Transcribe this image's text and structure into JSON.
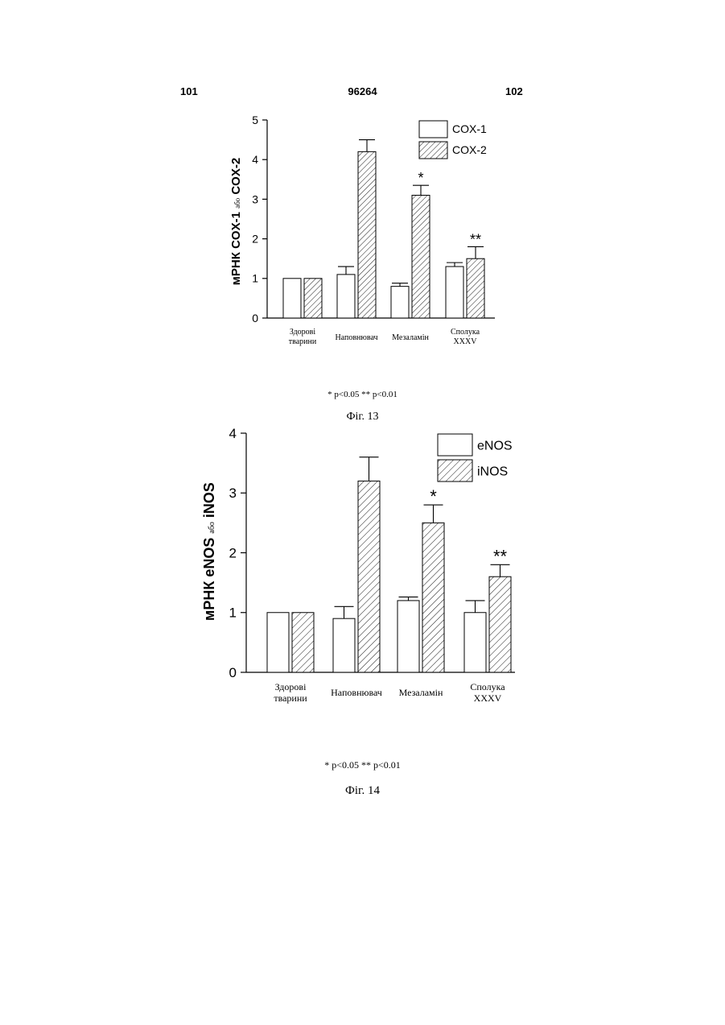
{
  "header": {
    "left": "101",
    "center": "96264",
    "right": "102"
  },
  "figures": [
    {
      "caption": "Фіг. 13",
      "footnote": "* p<0.05 ** p<0.01",
      "chart_data": {
        "type": "bar",
        "ylabel_main": "мРНК COX-1",
        "ylabel_conj": "або",
        "ylabel_tail": "COX-2",
        "ylim": [
          0,
          5
        ],
        "yticks": [
          0,
          1,
          2,
          3,
          4,
          5
        ],
        "categories": [
          [
            "Здорові",
            "тварини"
          ],
          [
            "Наповнювач"
          ],
          [
            "Мезаламін"
          ],
          [
            "Сполука",
            "XXXV"
          ]
        ],
        "series": [
          {
            "name": "COX-1",
            "pattern": "open",
            "values": [
              1.0,
              1.1,
              0.8,
              1.3
            ],
            "errors": [
              0,
              0.2,
              0.08,
              0.1
            ]
          },
          {
            "name": "COX-2",
            "pattern": "hatched",
            "values": [
              1.0,
              4.2,
              3.1,
              1.5
            ],
            "errors": [
              0,
              0.3,
              0.25,
              0.3
            ]
          }
        ],
        "significance": [
          "",
          "",
          "*",
          "**"
        ],
        "legend": "top-right",
        "grid": false
      }
    },
    {
      "caption": "Фіг. 14",
      "footnote": "* p<0.05 ** p<0.01",
      "chart_data": {
        "type": "bar",
        "ylabel_main": "мРНК eNOS",
        "ylabel_conj": "або",
        "ylabel_tail": "iNOS",
        "ylim": [
          0,
          4
        ],
        "yticks": [
          0,
          1,
          2,
          3,
          4
        ],
        "categories": [
          [
            "Здорові",
            "тварини"
          ],
          [
            "Наповнювач"
          ],
          [
            "Мезаламін"
          ],
          [
            "Сполука",
            "XXXV"
          ]
        ],
        "series": [
          {
            "name": "eNOS",
            "pattern": "open",
            "values": [
              1.0,
              0.9,
              1.2,
              1.0
            ],
            "errors": [
              0,
              0.2,
              0.06,
              0.2
            ]
          },
          {
            "name": "iNOS",
            "pattern": "hatched",
            "values": [
              1.0,
              3.2,
              2.5,
              1.6
            ],
            "errors": [
              0,
              0.4,
              0.3,
              0.2
            ]
          }
        ],
        "significance": [
          "",
          "",
          "*",
          "**"
        ],
        "legend": "top-right",
        "grid": false
      }
    }
  ]
}
